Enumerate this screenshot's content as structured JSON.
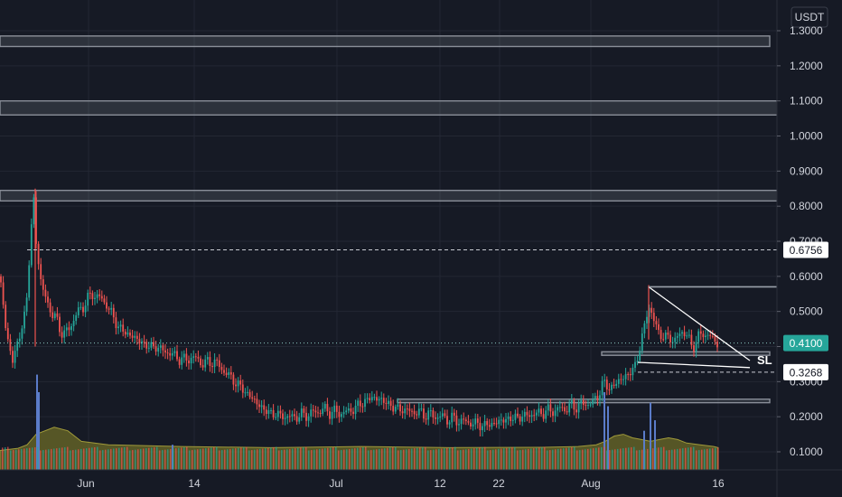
{
  "chart_data": {
    "type": "candlestick",
    "currency": "USDT",
    "y_axis": {
      "ticks": [
        "1.3000",
        "1.2000",
        "1.1000",
        "1.0000",
        "0.9000",
        "0.8000",
        "0.7000",
        "0.6000",
        "0.5000",
        "0.4000",
        "0.3000",
        "0.2000",
        "0.1000"
      ],
      "range": [
        0.05,
        1.35
      ]
    },
    "x_axis": {
      "ticks": [
        "Jun",
        "14",
        "Jul",
        "12",
        "22",
        "Aug",
        "16"
      ]
    },
    "price_tags": [
      {
        "label": "0.6756",
        "value": 0.6756,
        "style": "dashed",
        "bg": "#ffffff",
        "fg": "#131722"
      },
      {
        "label": "0.4100",
        "value": 0.41,
        "style": "dotted",
        "bg": "#26a69a",
        "fg": "#ffffff"
      },
      {
        "label": "0.3268",
        "value": 0.3268,
        "style": "dashed",
        "bg": "#ffffff",
        "fg": "#131722"
      }
    ],
    "zones": [
      {
        "low": 1.255,
        "high": 1.285
      },
      {
        "low": 1.06,
        "high": 1.1
      },
      {
        "low": 0.815,
        "high": 0.845
      },
      {
        "low": 0.375,
        "high": 0.385
      },
      {
        "low": 0.24,
        "high": 0.25
      }
    ],
    "annotation": {
      "text": "SL",
      "value": 0.36
    },
    "price_path": [
      [
        0,
        0.6
      ],
      [
        6,
        0.46
      ],
      [
        10,
        0.4
      ],
      [
        14,
        0.36
      ],
      [
        18,
        0.4
      ],
      [
        22,
        0.43
      ],
      [
        26,
        0.47
      ],
      [
        30,
        0.55
      ],
      [
        34,
        0.72
      ],
      [
        38,
        0.83
      ],
      [
        40,
        0.7
      ],
      [
        46,
        0.57
      ],
      [
        52,
        0.53
      ],
      [
        58,
        0.49
      ],
      [
        64,
        0.47
      ],
      [
        70,
        0.43
      ],
      [
        76,
        0.45
      ],
      [
        82,
        0.48
      ],
      [
        90,
        0.51
      ],
      [
        96,
        0.53
      ],
      [
        102,
        0.55
      ],
      [
        110,
        0.54
      ],
      [
        118,
        0.52
      ],
      [
        124,
        0.49
      ],
      [
        130,
        0.46
      ],
      [
        138,
        0.44
      ],
      [
        146,
        0.43
      ],
      [
        152,
        0.42
      ],
      [
        158,
        0.41
      ],
      [
        164,
        0.4
      ],
      [
        172,
        0.4
      ],
      [
        180,
        0.39
      ],
      [
        188,
        0.38
      ],
      [
        196,
        0.37
      ],
      [
        204,
        0.36
      ],
      [
        212,
        0.37
      ],
      [
        220,
        0.36
      ],
      [
        228,
        0.35
      ],
      [
        236,
        0.36
      ],
      [
        244,
        0.34
      ],
      [
        252,
        0.32
      ],
      [
        260,
        0.3
      ],
      [
        268,
        0.28
      ],
      [
        276,
        0.26
      ],
      [
        284,
        0.24
      ],
      [
        292,
        0.22
      ],
      [
        300,
        0.21
      ],
      [
        308,
        0.205
      ],
      [
        316,
        0.2
      ],
      [
        326,
        0.2
      ],
      [
        336,
        0.205
      ],
      [
        346,
        0.21
      ],
      [
        356,
        0.22
      ],
      [
        366,
        0.215
      ],
      [
        376,
        0.21
      ],
      [
        386,
        0.215
      ],
      [
        396,
        0.23
      ],
      [
        404,
        0.245
      ],
      [
        412,
        0.255
      ],
      [
        420,
        0.25
      ],
      [
        428,
        0.24
      ],
      [
        436,
        0.225
      ],
      [
        446,
        0.22
      ],
      [
        456,
        0.215
      ],
      [
        466,
        0.21
      ],
      [
        476,
        0.205
      ],
      [
        486,
        0.2
      ],
      [
        496,
        0.195
      ],
      [
        506,
        0.19
      ],
      [
        516,
        0.185
      ],
      [
        526,
        0.18
      ],
      [
        536,
        0.175
      ],
      [
        546,
        0.18
      ],
      [
        556,
        0.19
      ],
      [
        566,
        0.195
      ],
      [
        576,
        0.2
      ],
      [
        586,
        0.205
      ],
      [
        596,
        0.21
      ],
      [
        606,
        0.215
      ],
      [
        616,
        0.22
      ],
      [
        626,
        0.225
      ],
      [
        636,
        0.23
      ],
      [
        646,
        0.235
      ],
      [
        656,
        0.24
      ],
      [
        662,
        0.26
      ],
      [
        668,
        0.3
      ],
      [
        674,
        0.28
      ],
      [
        680,
        0.29
      ],
      [
        688,
        0.31
      ],
      [
        696,
        0.32
      ],
      [
        704,
        0.35
      ],
      [
        712,
        0.44
      ],
      [
        718,
        0.52
      ],
      [
        724,
        0.47
      ],
      [
        730,
        0.44
      ],
      [
        736,
        0.42
      ],
      [
        742,
        0.43
      ],
      [
        748,
        0.41
      ],
      [
        754,
        0.45
      ],
      [
        760,
        0.43
      ],
      [
        766,
        0.4
      ],
      [
        772,
        0.42
      ],
      [
        778,
        0.44
      ],
      [
        784,
        0.43
      ],
      [
        790,
        0.42
      ],
      [
        795,
        0.41
      ]
    ],
    "volume_path": [
      [
        0,
        0.004
      ],
      [
        20,
        0.01
      ],
      [
        30,
        0.02
      ],
      [
        40,
        0.05
      ],
      [
        60,
        0.07
      ],
      [
        75,
        0.06
      ],
      [
        90,
        0.03
      ],
      [
        120,
        0.02
      ],
      [
        200,
        0.015
      ],
      [
        300,
        0.012
      ],
      [
        400,
        0.015
      ],
      [
        500,
        0.012
      ],
      [
        600,
        0.013
      ],
      [
        640,
        0.015
      ],
      [
        660,
        0.02
      ],
      [
        670,
        0.03
      ],
      [
        680,
        0.045
      ],
      [
        690,
        0.05
      ],
      [
        700,
        0.04
      ],
      [
        710,
        0.035
      ],
      [
        720,
        0.03
      ],
      [
        730,
        0.035
      ],
      [
        740,
        0.04
      ],
      [
        750,
        0.035
      ],
      [
        760,
        0.025
      ],
      [
        775,
        0.02
      ],
      [
        790,
        0.015
      ],
      [
        795,
        0.012
      ]
    ]
  }
}
